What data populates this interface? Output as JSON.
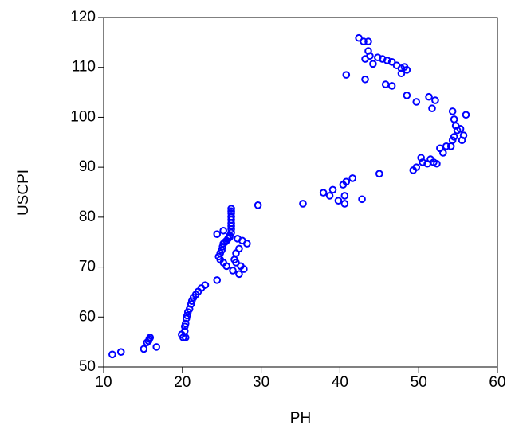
{
  "chart_data": {
    "type": "scatter",
    "x_label": "PH",
    "y_label": "USCPI",
    "color": "#0000ff",
    "grid": false,
    "xlim": [
      10,
      60
    ],
    "ylim": [
      50,
      120
    ],
    "xticks": [
      10,
      20,
      30,
      40,
      50,
      60
    ],
    "yticks": [
      50,
      60,
      70,
      80,
      90,
      100,
      110,
      120
    ],
    "x": [
      11.1,
      12.2,
      15.1,
      16.7,
      15.5,
      15.8,
      15.7,
      15.9,
      20.1,
      20.4,
      19.9,
      20.3,
      20.3,
      20.4,
      20.5,
      20.6,
      20.7,
      20.9,
      21.1,
      21.2,
      21.4,
      21.7,
      22.0,
      22.4,
      22.9,
      24.4,
      24.6,
      24.8,
      25.0,
      25.1,
      25.2,
      25.4,
      25.6,
      25.8,
      26.0,
      26.2,
      26.2,
      26.2,
      26.2,
      26.2,
      26.2,
      26.2,
      26.2,
      26.2,
      24.4,
      25.2,
      26.0,
      27.0,
      27.6,
      28.2,
      27.2,
      26.8,
      26.6,
      26.8,
      27.4,
      27.8,
      27.2,
      26.4,
      25.6,
      25.2,
      24.8,
      29.6,
      35.3,
      37.9,
      38.7,
      39.1,
      39.8,
      40.6,
      40.6,
      40.4,
      40.8,
      41.6,
      42.8,
      45.0,
      49.3,
      49.7,
      50.3,
      50.5,
      51.1,
      51.5,
      51.9,
      52.3,
      52.7,
      53.1,
      53.5,
      54.1,
      54.3,
      54.5,
      54.9,
      55.3,
      55.7,
      55.5,
      54.7,
      54.5,
      54.3,
      56.0,
      42.4,
      43.0,
      43.6,
      43.6,
      43.2,
      43.8,
      44.2,
      44.8,
      45.4,
      46.0,
      46.6,
      47.2,
      47.8,
      48.2,
      48.5,
      47.8,
      40.8,
      43.2,
      45.8,
      46.6,
      48.5,
      49.7,
      51.3,
      52.1,
      51.7
    ],
    "values": [
      52.5,
      53.0,
      53.6,
      54.0,
      54.9,
      55.6,
      55.2,
      55.9,
      55.9,
      55.9,
      56.5,
      57.2,
      58.1,
      58.7,
      59.7,
      60.3,
      61.0,
      61.6,
      62.6,
      63.2,
      63.9,
      64.5,
      65.1,
      65.8,
      66.4,
      67.4,
      72.1,
      72.8,
      73.4,
      74.1,
      74.7,
      75.0,
      75.3,
      75.7,
      76.3,
      76.9,
      77.6,
      78.2,
      78.8,
      79.5,
      80.1,
      80.8,
      81.2,
      81.7,
      76.6,
      77.3,
      76.0,
      75.7,
      75.3,
      74.7,
      73.7,
      72.8,
      71.5,
      70.9,
      70.2,
      69.6,
      68.6,
      69.3,
      70.2,
      70.9,
      71.5,
      82.4,
      82.7,
      84.9,
      84.3,
      85.5,
      83.3,
      84.3,
      82.7,
      86.5,
      87.1,
      87.8,
      83.6,
      88.7,
      89.4,
      90.0,
      91.9,
      91.0,
      90.7,
      91.6,
      91.0,
      90.7,
      93.8,
      92.9,
      94.2,
      94.2,
      95.4,
      96.1,
      97.4,
      97.7,
      96.4,
      95.4,
      98.3,
      99.6,
      101.2,
      100.5,
      115.9,
      115.2,
      115.2,
      113.3,
      111.7,
      112.3,
      110.7,
      112.0,
      111.7,
      111.4,
      111.1,
      110.4,
      109.8,
      110.1,
      109.5,
      108.8,
      108.5,
      107.6,
      106.6,
      106.3,
      104.4,
      103.1,
      104.1,
      103.4,
      101.8
    ]
  }
}
